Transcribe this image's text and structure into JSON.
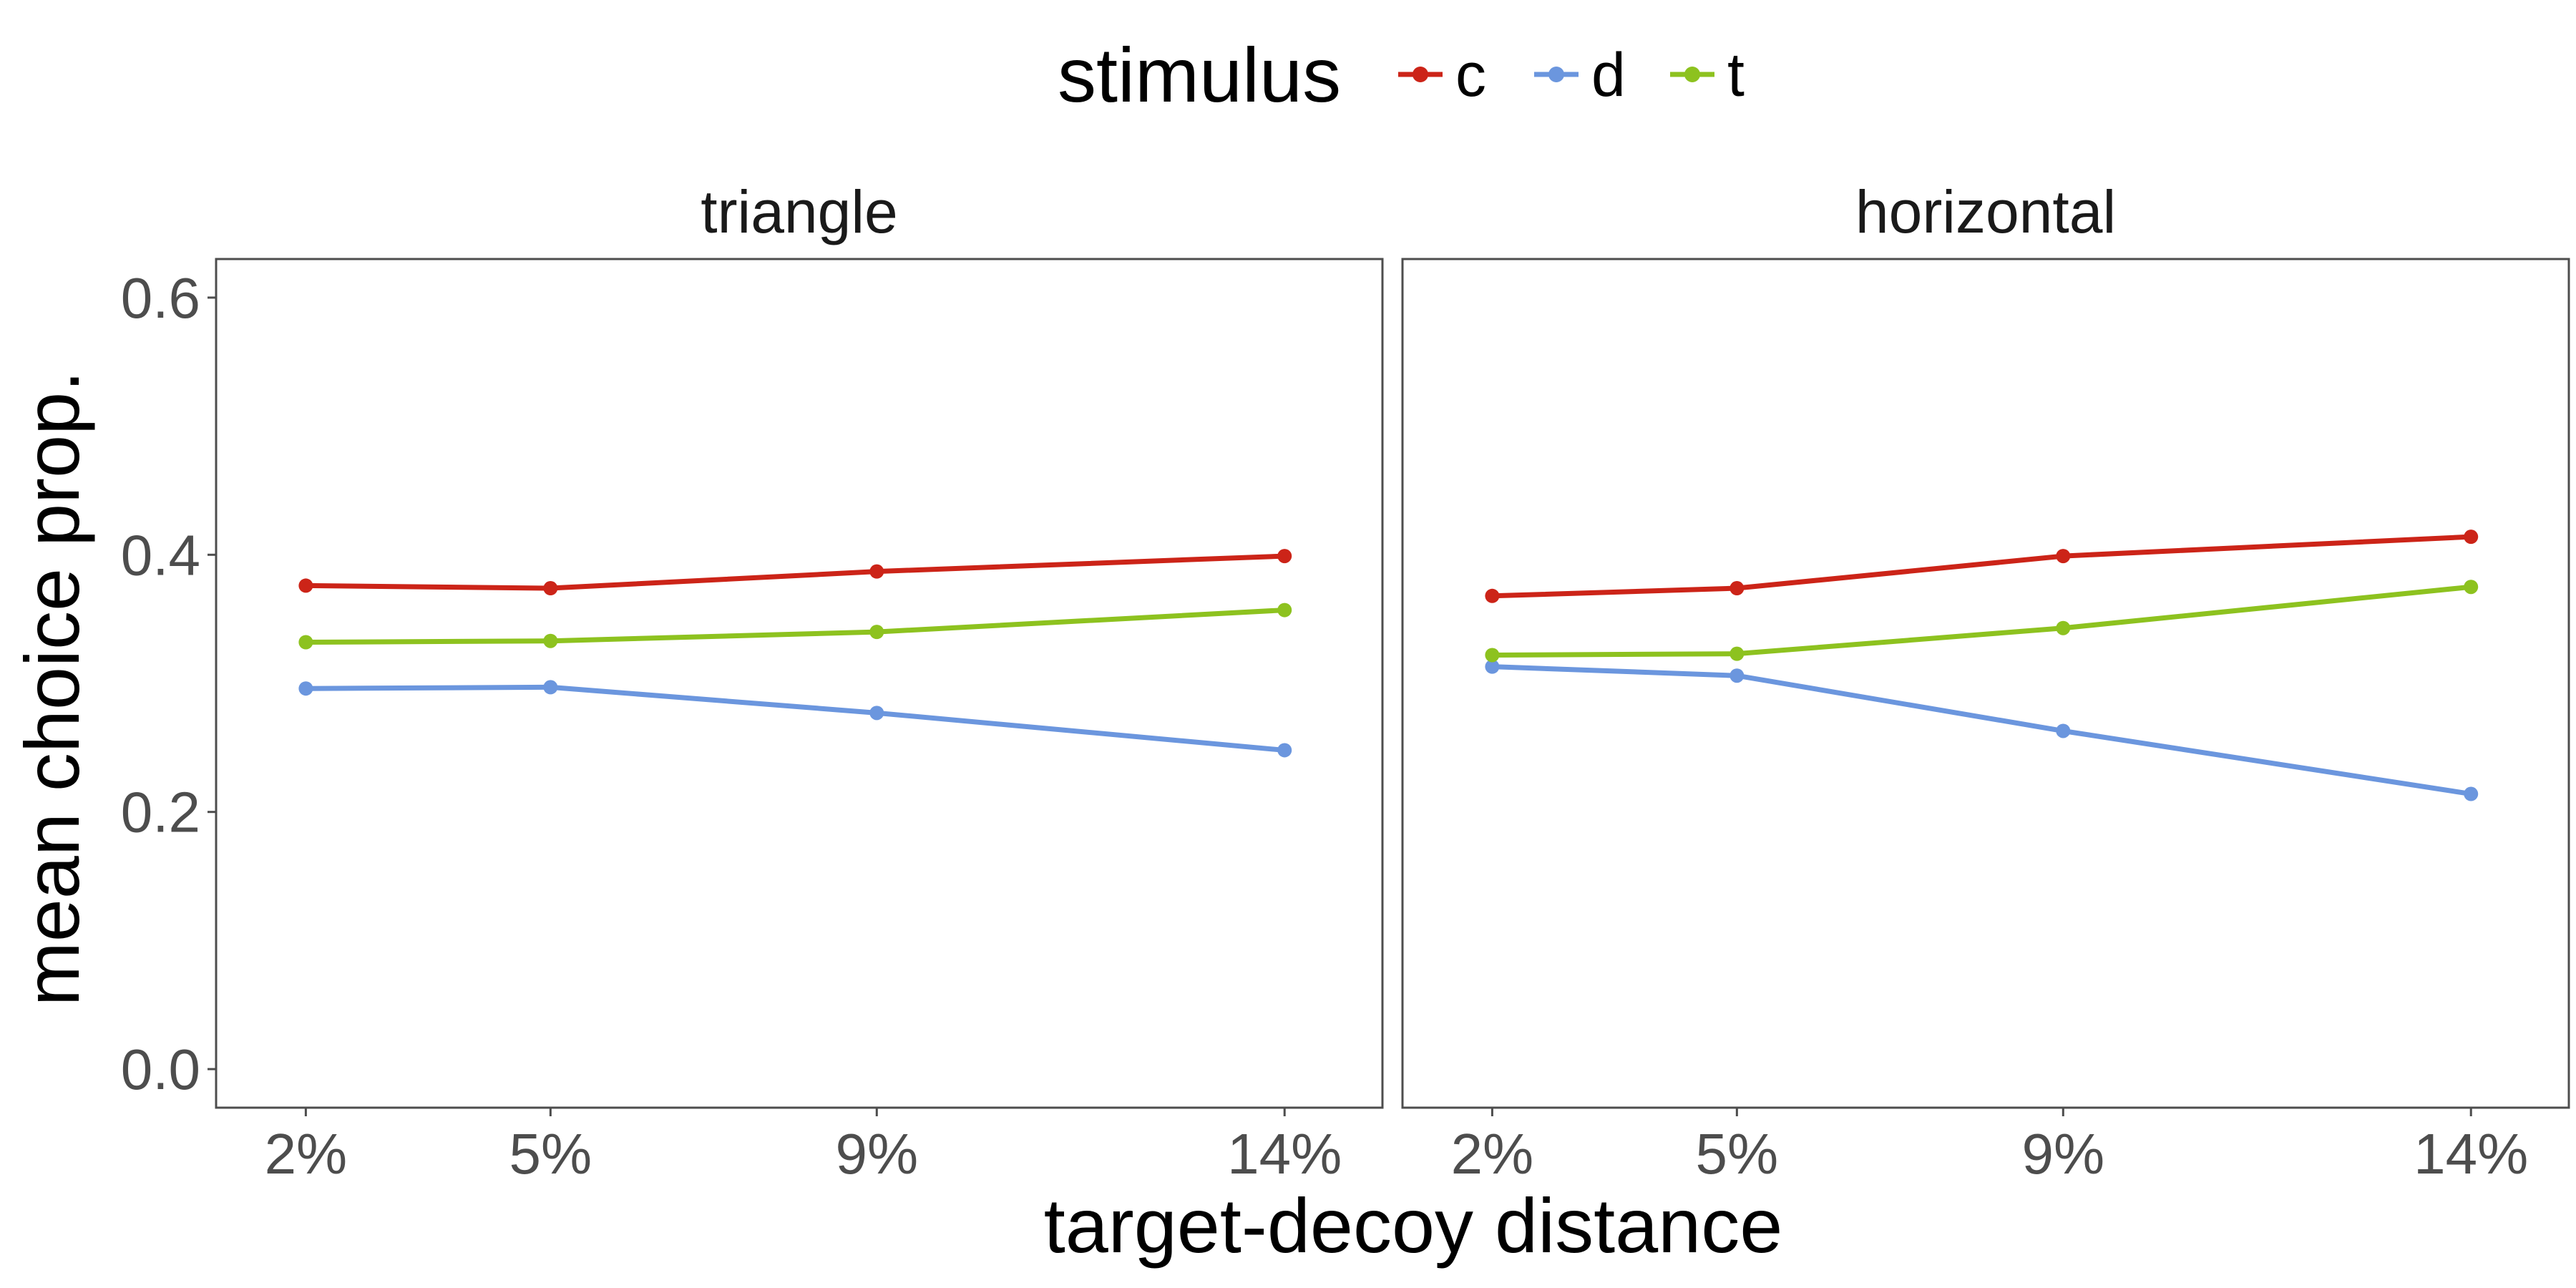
{
  "chart_data": {
    "type": "line",
    "xlabel": "target-decoy distance",
    "ylabel": "mean choice prop.",
    "ylim": [
      -0.03,
      0.63
    ],
    "yticks": [
      0.0,
      0.2,
      0.4,
      0.6
    ],
    "ytick_labels": [
      "0.0",
      "0.2",
      "0.4",
      "0.6"
    ],
    "x": [
      2,
      5,
      9,
      14
    ],
    "xlim": [
      0.9,
      15.2
    ],
    "xtick_labels": [
      "2%",
      "5%",
      "9%",
      "14%"
    ],
    "grid": false,
    "legend": {
      "title": "stimulus",
      "position": "top",
      "entries": [
        {
          "key": "c",
          "label": "c",
          "color": "#CC2418"
        },
        {
          "key": "d",
          "label": "d",
          "color": "#6B96DE"
        },
        {
          "key": "t",
          "label": "t",
          "color": "#8DC21F"
        }
      ]
    },
    "panels": [
      {
        "title": "triangle",
        "series": [
          {
            "key": "c",
            "values": [
              0.376,
              0.374,
              0.387,
              0.399
            ]
          },
          {
            "key": "d",
            "values": [
              0.296,
              0.297,
              0.277,
              0.248
            ]
          },
          {
            "key": "t",
            "values": [
              0.332,
              0.333,
              0.34,
              0.357
            ]
          }
        ]
      },
      {
        "title": "horizontal",
        "series": [
          {
            "key": "c",
            "values": [
              0.368,
              0.374,
              0.399,
              0.414
            ]
          },
          {
            "key": "d",
            "values": [
              0.313,
              0.306,
              0.263,
              0.214
            ]
          },
          {
            "key": "t",
            "values": [
              0.322,
              0.323,
              0.343,
              0.375
            ]
          }
        ]
      }
    ]
  }
}
